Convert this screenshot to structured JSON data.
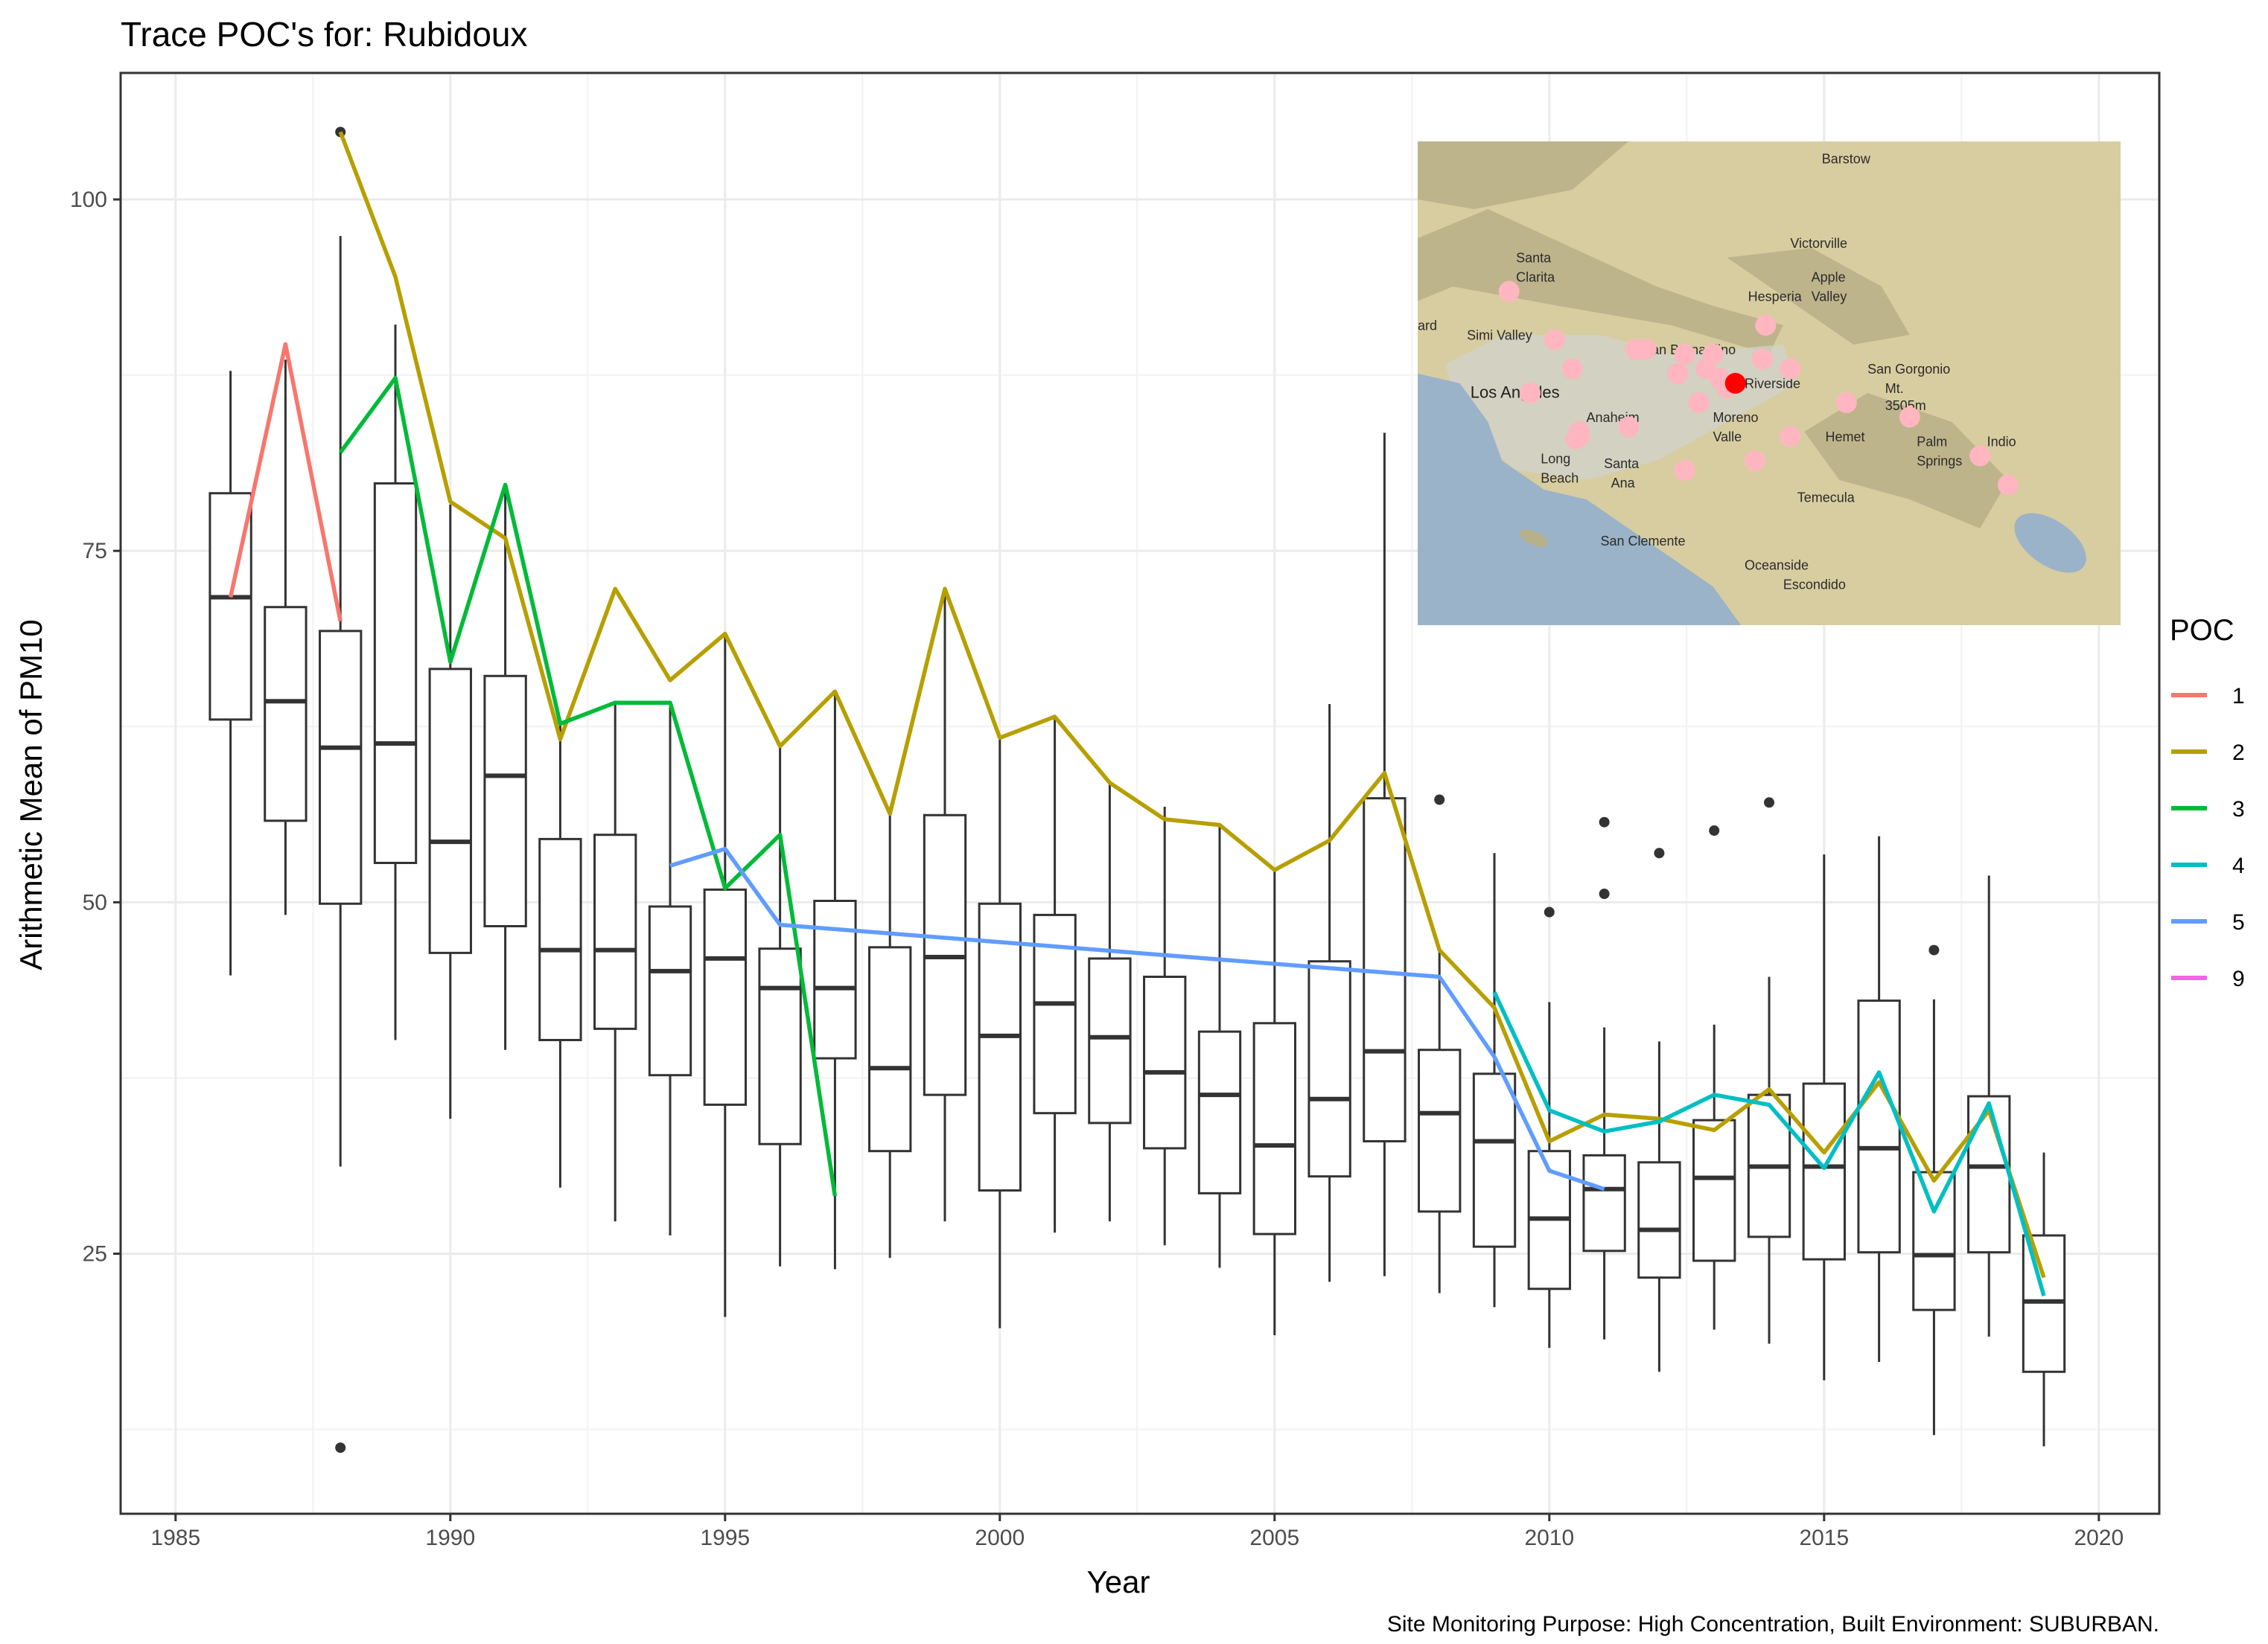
{
  "chart_data": {
    "type": "box",
    "title": "Trace POC's for: Rubidoux",
    "xlabel": "Year",
    "ylabel": "Arithmetic Mean of PM10",
    "caption": "Site Monitoring Purpose: High Concentration, Built Environment: SUBURBAN.",
    "xlim": [
      1984,
      2021.1
    ],
    "ylim": [
      6.5,
      109
    ],
    "x_ticks": [
      1985,
      1990,
      1995,
      2000,
      2005,
      2010,
      2015,
      2020
    ],
    "x_tick_labels": [
      "1985",
      "1990",
      "1995",
      "2000",
      "2005",
      "2010",
      "2015",
      "2020"
    ],
    "y_ticks": [
      25,
      50,
      75,
      100
    ],
    "y_tick_labels": [
      "25",
      "50",
      "75",
      "100"
    ],
    "grid": true,
    "legend": {
      "title": "POC",
      "position": "right",
      "entries": [
        {
          "label": "1",
          "color": "#F8766D"
        },
        {
          "label": "2",
          "color": "#B79F00"
        },
        {
          "label": "3",
          "color": "#00BA38"
        },
        {
          "label": "4",
          "color": "#00BFC4"
        },
        {
          "label": "5",
          "color": "#619CFF"
        },
        {
          "label": "9",
          "color": "#F564E3"
        }
      ]
    },
    "boxes": [
      {
        "x": 1986,
        "lower": 44.8,
        "q1": 63.0,
        "median": 71.7,
        "q3": 79.1,
        "upper": 87.8,
        "outliers": []
      },
      {
        "x": 1987,
        "lower": 49.1,
        "q1": 55.8,
        "median": 64.3,
        "q3": 71.0,
        "upper": 88.6,
        "outliers": []
      },
      {
        "x": 1988,
        "lower": 31.2,
        "q1": 49.9,
        "median": 61.0,
        "q3": 69.3,
        "upper": 97.4,
        "outliers": [
          104.8,
          11.2
        ]
      },
      {
        "x": 1989,
        "lower": 40.2,
        "q1": 52.8,
        "median": 61.3,
        "q3": 79.8,
        "upper": 91.1,
        "outliers": []
      },
      {
        "x": 1990,
        "lower": 34.6,
        "q1": 46.4,
        "median": 54.3,
        "q3": 66.6,
        "upper": 78.3,
        "outliers": []
      },
      {
        "x": 1991,
        "lower": 39.5,
        "q1": 48.3,
        "median": 59.0,
        "q3": 66.1,
        "upper": 79.7,
        "outliers": []
      },
      {
        "x": 1992,
        "lower": 29.7,
        "q1": 40.2,
        "median": 46.6,
        "q3": 54.5,
        "upper": 62.7,
        "outliers": []
      },
      {
        "x": 1993,
        "lower": 27.3,
        "q1": 41.0,
        "median": 46.6,
        "q3": 54.8,
        "upper": 64.3,
        "outliers": []
      },
      {
        "x": 1994,
        "lower": 26.3,
        "q1": 37.7,
        "median": 45.1,
        "q3": 49.7,
        "upper": 64.3,
        "outliers": []
      },
      {
        "x": 1995,
        "lower": 20.5,
        "q1": 35.6,
        "median": 46.0,
        "q3": 50.9,
        "upper": 69.1,
        "outliers": []
      },
      {
        "x": 1996,
        "lower": 24.1,
        "q1": 32.8,
        "median": 43.9,
        "q3": 46.7,
        "upper": 61.2,
        "outliers": []
      },
      {
        "x": 1997,
        "lower": 23.9,
        "q1": 38.9,
        "median": 43.9,
        "q3": 50.1,
        "upper": 65.0,
        "outliers": []
      },
      {
        "x": 1998,
        "lower": 24.7,
        "q1": 32.3,
        "median": 38.2,
        "q3": 46.8,
        "upper": 56.3,
        "outliers": []
      },
      {
        "x": 1999,
        "lower": 27.3,
        "q1": 36.3,
        "median": 46.1,
        "q3": 56.2,
        "upper": 72.3,
        "outliers": []
      },
      {
        "x": 2000,
        "lower": 19.7,
        "q1": 29.5,
        "median": 40.5,
        "q3": 49.9,
        "upper": 61.7,
        "outliers": []
      },
      {
        "x": 2001,
        "lower": 26.5,
        "q1": 35.0,
        "median": 42.8,
        "q3": 49.1,
        "upper": 63.2,
        "outliers": []
      },
      {
        "x": 2002,
        "lower": 27.3,
        "q1": 34.3,
        "median": 40.4,
        "q3": 46.0,
        "upper": 58.5,
        "outliers": []
      },
      {
        "x": 2003,
        "lower": 25.6,
        "q1": 32.5,
        "median": 37.9,
        "q3": 44.7,
        "upper": 56.8,
        "outliers": []
      },
      {
        "x": 2004,
        "lower": 24.0,
        "q1": 29.3,
        "median": 36.3,
        "q3": 40.8,
        "upper": 55.5,
        "outliers": []
      },
      {
        "x": 2005,
        "lower": 19.2,
        "q1": 26.4,
        "median": 32.7,
        "q3": 41.4,
        "upper": 52.3,
        "outliers": []
      },
      {
        "x": 2006,
        "lower": 23.0,
        "q1": 30.5,
        "median": 36.0,
        "q3": 45.8,
        "upper": 64.1,
        "outliers": []
      },
      {
        "x": 2007,
        "lower": 23.4,
        "q1": 33.0,
        "median": 39.4,
        "q3": 57.4,
        "upper": 83.4,
        "outliers": []
      },
      {
        "x": 2008,
        "lower": 22.2,
        "q1": 28.0,
        "median": 35.0,
        "q3": 39.5,
        "upper": 46.5,
        "outliers": [
          57.3
        ]
      },
      {
        "x": 2009,
        "lower": 21.2,
        "q1": 25.5,
        "median": 33.0,
        "q3": 37.8,
        "upper": 53.5,
        "outliers": []
      },
      {
        "x": 2010,
        "lower": 18.3,
        "q1": 22.5,
        "median": 27.5,
        "q3": 32.3,
        "upper": 42.9,
        "outliers": [
          49.3
        ]
      },
      {
        "x": 2011,
        "lower": 18.9,
        "q1": 25.2,
        "median": 29.6,
        "q3": 32.0,
        "upper": 41.1,
        "outliers": [
          55.7,
          50.6
        ]
      },
      {
        "x": 2012,
        "lower": 16.6,
        "q1": 23.3,
        "median": 26.7,
        "q3": 31.5,
        "upper": 40.1,
        "outliers": [
          53.5
        ]
      },
      {
        "x": 2013,
        "lower": 19.6,
        "q1": 24.5,
        "median": 30.4,
        "q3": 34.5,
        "upper": 41.3,
        "outliers": [
          55.1
        ]
      },
      {
        "x": 2014,
        "lower": 18.6,
        "q1": 26.2,
        "median": 31.2,
        "q3": 36.3,
        "upper": 44.7,
        "outliers": [
          57.1
        ]
      },
      {
        "x": 2015,
        "lower": 16.0,
        "q1": 24.6,
        "median": 31.2,
        "q3": 37.1,
        "upper": 53.4,
        "outliers": []
      },
      {
        "x": 2016,
        "lower": 17.3,
        "q1": 25.1,
        "median": 32.5,
        "q3": 43.0,
        "upper": 54.7,
        "outliers": []
      },
      {
        "x": 2017,
        "lower": 12.1,
        "q1": 21.0,
        "median": 24.9,
        "q3": 30.8,
        "upper": 43.1,
        "outliers": [
          46.6
        ]
      },
      {
        "x": 2018,
        "lower": 19.1,
        "q1": 25.1,
        "median": 31.2,
        "q3": 36.2,
        "upper": 51.9,
        "outliers": []
      },
      {
        "x": 2019,
        "lower": 11.3,
        "q1": 16.6,
        "median": 21.6,
        "q3": 26.3,
        "upper": 32.2,
        "outliers": []
      }
    ],
    "series": [
      {
        "name": "1",
        "color": "#F8766D",
        "x": [
          1986,
          1987,
          1988
        ],
        "y": [
          71.7,
          89.7,
          70.0
        ]
      },
      {
        "name": "2",
        "color": "#B79F00",
        "x": [
          1988,
          1989,
          1990,
          1991,
          1992,
          1993,
          1994,
          1995,
          1996,
          1997,
          1998,
          1999,
          2000,
          2001,
          2002,
          2003,
          2004,
          2005,
          2006,
          2007,
          2008,
          2009,
          2010,
          2011,
          2012,
          2013,
          2014,
          2015,
          2016,
          2017,
          2018,
          2019
        ],
        "y": [
          104.8,
          94.5,
          78.5,
          75.9,
          61.6,
          72.3,
          65.8,
          69.1,
          61.1,
          65.0,
          56.3,
          72.3,
          61.7,
          63.2,
          58.5,
          55.9,
          55.5,
          52.3,
          54.4,
          59.2,
          46.6,
          42.5,
          33.0,
          34.9,
          34.6,
          33.8,
          36.7,
          32.2,
          37.2,
          30.2,
          35.2,
          23.3
        ]
      },
      {
        "name": "3",
        "color": "#00BA38",
        "x": [
          1988,
          1989,
          1990,
          1991,
          1992,
          1993,
          1994,
          1995,
          1996,
          1997
        ],
        "y": [
          82.0,
          87.3,
          67.1,
          79.7,
          62.7,
          64.2,
          64.2,
          51.0,
          54.8,
          29.1
        ]
      },
      {
        "name": "4",
        "color": "#00BFC4",
        "x": [
          2009,
          2010,
          2011,
          2012,
          2013,
          2014,
          2015,
          2016,
          2017,
          2018,
          2019
        ],
        "y": [
          43.6,
          35.2,
          33.7,
          34.4,
          36.3,
          35.6,
          31.1,
          37.9,
          28.0,
          35.7,
          22.0
        ]
      },
      {
        "name": "5",
        "color": "#619CFF",
        "x": [
          1994,
          1995,
          1996,
          2008,
          2009,
          2010,
          2011
        ],
        "y": [
          52.6,
          53.8,
          48.4,
          44.7,
          39.0,
          30.9,
          29.6
        ]
      },
      {
        "name": "9",
        "color": "#F564E3",
        "x": [],
        "y": []
      }
    ],
    "inset_map": {
      "site_marker_color": "#FF0000",
      "station_marker_color": "#FFB6C1",
      "land_color": "#D8CDA0",
      "water_color": "#9AB3C9",
      "place_labels": [
        "Barstow",
        "Victorville",
        "Apple",
        "Valley",
        "Hesperia",
        "Santa",
        "Clarita",
        "Simi Valley",
        "ard",
        "San Bernardino",
        "Los Angeles",
        "Riverside",
        "San Gorgonio",
        "Mt.",
        "3505m",
        "Anaheim",
        "Moreno",
        "Valle",
        "Hemet",
        "Palm",
        "Springs",
        "Indio",
        "Long",
        "Beach",
        "Santa",
        "Ana",
        "Temecula",
        "San Clemente",
        "Oceanside",
        "Escondido"
      ]
    }
  }
}
